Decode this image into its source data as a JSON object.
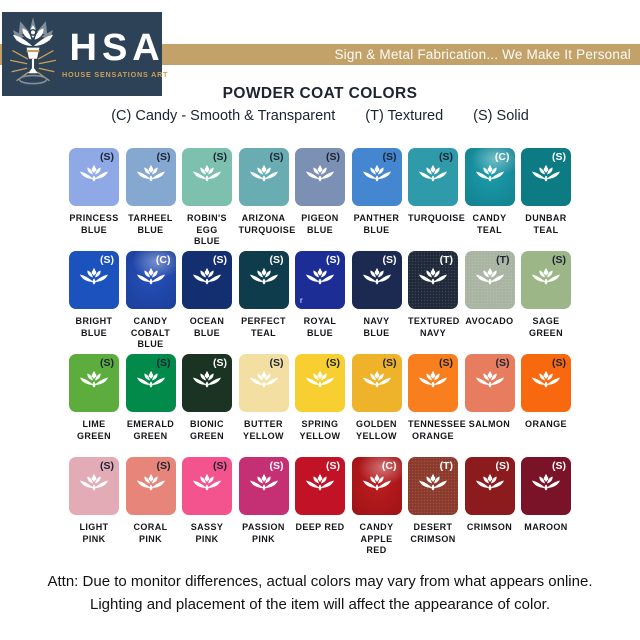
{
  "header": {
    "logo": {
      "acronym": "HSA",
      "subtitle": "HOUSE SENSATIONS ART",
      "box_color": "#2e4257",
      "subtitle_color": "#c9a158"
    },
    "stripe": {
      "text": "Sign & Metal Fabrication... We Make It Personal",
      "background": "#c2a269",
      "text_color": "#fdfcf8"
    }
  },
  "title": "POWDER COAT COLORS",
  "legend": [
    "(C) Candy - Smooth & Transparent",
    "(T) Textured",
    "(S) Solid"
  ],
  "rows": [
    [
      {
        "name_lines": [
          "PRINCESS",
          "BLUE"
        ],
        "code": "(S)",
        "finish": "solid",
        "hex": "#8fa9e6",
        "letter": "dark"
      },
      {
        "name_lines": [
          "TARHEEL",
          "BLUE"
        ],
        "code": "(S)",
        "finish": "solid",
        "hex": "#85a8d0",
        "letter": "dark"
      },
      {
        "name_lines": [
          "ROBIN'S",
          "EGG BLUE"
        ],
        "code": "(S)",
        "finish": "solid",
        "hex": "#7cc0ad",
        "letter": "dark"
      },
      {
        "name_lines": [
          "ARIZONA",
          "TURQUOISE"
        ],
        "code": "(S)",
        "finish": "solid",
        "hex": "#69adb2",
        "letter": "dark"
      },
      {
        "name_lines": [
          "PIGEON",
          "BLUE"
        ],
        "code": "(S)",
        "finish": "solid",
        "hex": "#7b90b3",
        "letter": "dark"
      },
      {
        "name_lines": [
          "PANTHER",
          "BLUE"
        ],
        "code": "(S)",
        "finish": "solid",
        "hex": "#4486cf",
        "letter": "dark"
      },
      {
        "name_lines": [
          "TURQUOISE"
        ],
        "code": "(S)",
        "finish": "solid",
        "hex": "#2e9aaa",
        "letter": "dark"
      },
      {
        "name_lines": [
          "CANDY",
          "TEAL"
        ],
        "code": "(C)",
        "finish": "candy",
        "hex": "#0e95a6",
        "letter": "light"
      },
      {
        "name_lines": [
          "DUNBAR",
          "TEAL"
        ],
        "code": "(S)",
        "finish": "solid",
        "hex": "#0d7b84",
        "letter": "light"
      }
    ],
    [
      {
        "name_lines": [
          "BRIGHT",
          "BLUE"
        ],
        "code": "(S)",
        "finish": "solid",
        "hex": "#1b52be",
        "letter": "light"
      },
      {
        "name_lines": [
          "CANDY",
          "COBALT BLUE"
        ],
        "code": "(C)",
        "finish": "candy",
        "hex": "#1844b4",
        "letter": "light"
      },
      {
        "name_lines": [
          "OCEAN",
          "BLUE"
        ],
        "code": "(S)",
        "finish": "solid",
        "hex": "#132f70",
        "letter": "light"
      },
      {
        "name_lines": [
          "PERFECT",
          "TEAL"
        ],
        "code": "(S)",
        "finish": "solid",
        "hex": "#0e3c4d",
        "letter": "light"
      },
      {
        "name_lines": [
          "ROYAL",
          "BLUE"
        ],
        "code": "(S)",
        "finish": "solid",
        "hex": "#1c2e96",
        "letter": "light",
        "artifact": "r"
      },
      {
        "name_lines": [
          "NAVY",
          "BLUE"
        ],
        "code": "(S)",
        "finish": "solid",
        "hex": "#1c2a52",
        "letter": "light"
      },
      {
        "name_lines": [
          "TEXTURED",
          "NAVY"
        ],
        "code": "(T)",
        "finish": "textured",
        "hex": "#20293a",
        "letter": "light"
      },
      {
        "name_lines": [
          "AVOCADO"
        ],
        "code": "(T)",
        "finish": "textured",
        "hex": "#a9b5a2",
        "letter": "dark"
      },
      {
        "name_lines": [
          "SAGE",
          "GREEN"
        ],
        "code": "(S)",
        "finish": "solid",
        "hex": "#9cb687",
        "letter": "dark"
      }
    ],
    [
      {
        "name_lines": [
          "LIME",
          "GREEN"
        ],
        "code": "(S)",
        "finish": "solid",
        "hex": "#5cad3e",
        "letter": "dark"
      },
      {
        "name_lines": [
          "EMERALD",
          "GREEN"
        ],
        "code": "(S)",
        "finish": "solid",
        "hex": "#028a4b",
        "letter": "dark"
      },
      {
        "name_lines": [
          "BIONIC",
          "GREEN"
        ],
        "code": "(S)",
        "finish": "solid",
        "hex": "#1a3322",
        "letter": "light"
      },
      {
        "name_lines": [
          "BUTTER",
          "YELLOW"
        ],
        "code": "(S)",
        "finish": "solid",
        "hex": "#f2dfa1",
        "letter": "dark"
      },
      {
        "name_lines": [
          "SPRING",
          "YELLOW"
        ],
        "code": "(S)",
        "finish": "solid",
        "hex": "#f8cf30",
        "letter": "dark"
      },
      {
        "name_lines": [
          "GOLDEN",
          "YELLOW"
        ],
        "code": "(S)",
        "finish": "solid",
        "hex": "#efb22b",
        "letter": "dark"
      },
      {
        "name_lines": [
          "TENNESSEE",
          "ORANGE"
        ],
        "code": "(S)",
        "finish": "solid",
        "hex": "#f87e1e",
        "letter": "dark"
      },
      {
        "name_lines": [
          "SALMON"
        ],
        "code": "(S)",
        "finish": "solid",
        "hex": "#e87c5f",
        "letter": "dark"
      },
      {
        "name_lines": [
          "ORANGE"
        ],
        "code": "(S)",
        "finish": "solid",
        "hex": "#f8680f",
        "letter": "dark"
      }
    ],
    [
      {
        "name_lines": [
          "LIGHT",
          "PINK"
        ],
        "code": "(S)",
        "finish": "solid",
        "hex": "#e3abb5",
        "letter": "dark"
      },
      {
        "name_lines": [
          "CORAL",
          "PINK"
        ],
        "code": "(S)",
        "finish": "solid",
        "hex": "#e8857a",
        "letter": "dark"
      },
      {
        "name_lines": [
          "SASSY",
          "PINK"
        ],
        "code": "(S)",
        "finish": "solid",
        "hex": "#f4548d",
        "letter": "dark"
      },
      {
        "name_lines": [
          "PASSION",
          "PINK"
        ],
        "code": "(S)",
        "finish": "solid",
        "hex": "#c43073",
        "letter": "light"
      },
      {
        "name_lines": [
          "DEEP RED"
        ],
        "code": "(S)",
        "finish": "solid",
        "hex": "#c21226",
        "letter": "light"
      },
      {
        "name_lines": [
          "CANDY",
          "APPLE RED"
        ],
        "code": "(C)",
        "finish": "candy",
        "hex": "#b90f12",
        "letter": "light"
      },
      {
        "name_lines": [
          "DESERT",
          "CRIMSON"
        ],
        "code": "(T)",
        "finish": "textured",
        "hex": "#8c3a2c",
        "letter": "light"
      },
      {
        "name_lines": [
          "CRIMSON"
        ],
        "code": "(S)",
        "finish": "solid",
        "hex": "#8c1b1d",
        "letter": "light"
      },
      {
        "name_lines": [
          "MAROON"
        ],
        "code": "(S)",
        "finish": "solid",
        "hex": "#7a1328",
        "letter": "light"
      }
    ]
  ],
  "footer": {
    "line1": "Attn: Due to monitor differences, actual colors may vary from what appears online.",
    "line2": "Lighting and placement of the item will affect the appearance of color."
  },
  "colors": {
    "accent_gold": "#c2a269",
    "brand_navy": "#2e4257",
    "text_dark": "#1d2330"
  }
}
